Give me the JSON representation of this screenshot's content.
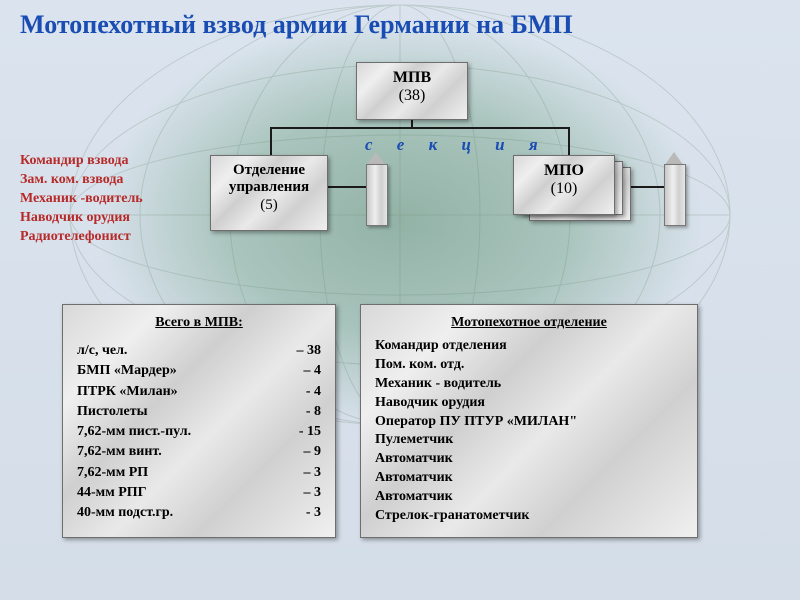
{
  "title": "Мотопехотный взвод армии Германии на БМП",
  "colors": {
    "title": "#1a4db3",
    "side_list": "#b72a2a",
    "text": "#000000",
    "marble_border": "#6e6e6e"
  },
  "org": {
    "top": {
      "name": "МПВ",
      "count": "(38)"
    },
    "left": {
      "line1": "Отделение",
      "line2": "управления",
      "count": "(5)"
    },
    "right": {
      "name": "МПО",
      "count": "(10)"
    },
    "section_label": "с е к ц и я"
  },
  "side_roles": [
    "Командир взвода",
    "Зам. ком. взвода",
    "Механик -водитель",
    "Наводчик орудия",
    "Радиотелефонист"
  ],
  "totals": {
    "header": "Всего в МПВ:",
    "rows": [
      {
        "l": "л/с, чел.",
        "r": "– 38"
      },
      {
        "l": "БМП «Мардер»",
        "r": "– 4"
      },
      {
        "l": "ПТРК «Милан»",
        "r": "- 4"
      },
      {
        "l": "Пистолеты",
        "r": "- 8"
      },
      {
        "l": "7,62-мм пист.-пул.",
        "r": "- 15"
      },
      {
        "l": "7,62-мм винт.",
        "r": "– 9"
      },
      {
        "l": "7,62-мм РП",
        "r": "– 3"
      },
      {
        "l": "44-мм РПГ",
        "r": "– 3"
      },
      {
        "l": "40-мм подст.гр.",
        "r": "- 3"
      }
    ]
  },
  "squad": {
    "header": "Мотопехотное отделение",
    "lines": [
      "Командир отделения",
      "Пом. ком. отд.",
      "Механик - водитель",
      "Наводчик орудия",
      "Оператор ПУ ПТУР «МИЛАН\"",
      "Пулеметчик",
      "Автоматчик",
      "Автоматчик",
      "Автоматчик",
      "Стрелок-гранатометчик"
    ]
  }
}
